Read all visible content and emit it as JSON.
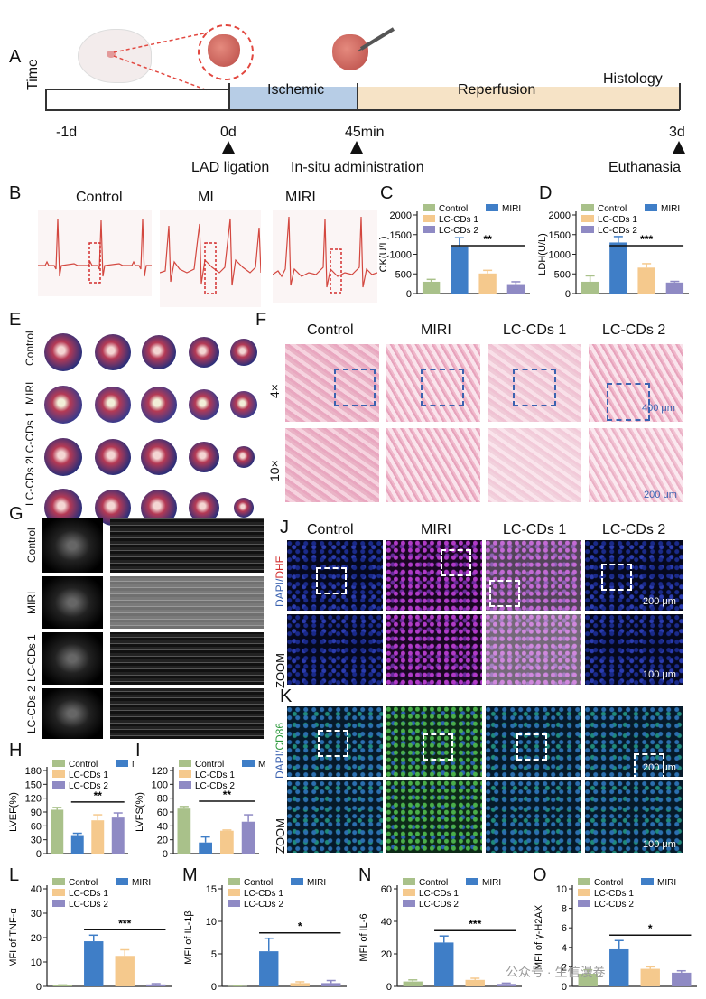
{
  "colors": {
    "control": "#a9c18a",
    "miri": "#3f7ec7",
    "lccds1": "#f5c98d",
    "lccds2": "#8f8ac4",
    "ischemic": "#b7cde6",
    "reperfusion": "#f6e3c6"
  },
  "panelA": {
    "label": "A",
    "time_label": "Time",
    "phase_ischemic": "Ischemic",
    "phase_reperfusion": "Reperfusion",
    "phase_histology": "Histology",
    "ticks": [
      "-1d",
      "0d",
      "45min",
      "3d"
    ],
    "events": [
      "LAD ligation",
      "In-situ administration",
      "Euthanasia"
    ]
  },
  "panelB": {
    "label": "B",
    "titles": [
      "Control",
      "MI",
      "MIRI"
    ]
  },
  "panelE": {
    "label": "E",
    "rows": [
      "Control",
      "MIRI",
      "LC-CDs 1",
      "LC-CDs 2"
    ]
  },
  "panelF": {
    "label": "F",
    "cols": [
      "Control",
      "MIRI",
      "LC-CDs 1",
      "LC-CDs 2"
    ],
    "rows": [
      "4×",
      "10×"
    ],
    "scales": [
      "400 μm",
      "200 μm"
    ]
  },
  "panelG": {
    "label": "G",
    "rows": [
      "Control",
      "MIRI",
      "LC-CDs 1",
      "LC-CDs 2"
    ]
  },
  "panelJ": {
    "label": "J",
    "cols": [
      "Control",
      "MIRI",
      "LC-CDs 1",
      "LC-CDs 2"
    ],
    "stain_a": "DAPI/",
    "stain_b": "DHE",
    "zoom": "ZOOM",
    "scales": [
      "200 μm",
      "100 μm"
    ]
  },
  "panelK": {
    "label": "K",
    "stain_a": "DAPI/",
    "stain_b": "CD86",
    "zoom": "ZOOM",
    "scales": [
      "200 μm",
      "100 μm"
    ]
  },
  "legend": {
    "control": "Control",
    "miri": "MIRI",
    "lccds1": "LC-CDs 1",
    "lccds2": "LC-CDs 2"
  },
  "watermark": "公众号 · 生信漫卷",
  "chart_data": [
    {
      "id": "C",
      "type": "bar",
      "label": "C",
      "ylabel": "CK(U/L)",
      "ylim": [
        0,
        2000
      ],
      "ticks": [
        0,
        500,
        1000,
        1500,
        2000
      ],
      "categories": [
        "Control",
        "MIRI",
        "LC-CDs 1",
        "LC-CDs 2"
      ],
      "values": [
        300,
        1200,
        510,
        240
      ],
      "errors": [
        60,
        220,
        80,
        60
      ],
      "sig": "**",
      "sig_from": 1,
      "sig_to": 3
    },
    {
      "id": "D",
      "type": "bar",
      "label": "D",
      "ylabel": "LDH(U/L)",
      "ylim": [
        0,
        2000
      ],
      "ticks": [
        0,
        500,
        1000,
        1500,
        2000
      ],
      "categories": [
        "Control",
        "MIRI",
        "LC-CDs 1",
        "LC-CDs 2"
      ],
      "values": [
        300,
        1300,
        660,
        280
      ],
      "errors": [
        150,
        150,
        100,
        30
      ],
      "sig": "***",
      "sig_from": 1,
      "sig_to": 3
    },
    {
      "id": "H",
      "type": "bar",
      "label": "H",
      "ylabel": "LVEF(%)",
      "ylim": [
        0,
        180
      ],
      "ticks": [
        0,
        30,
        60,
        90,
        120,
        150,
        180
      ],
      "categories": [
        "Control",
        "MIRI",
        "LC-CDs 1",
        "LC-CDs 2"
      ],
      "values": [
        95,
        40,
        72,
        78
      ],
      "errors": [
        5,
        4,
        12,
        10
      ],
      "sig": "**",
      "sig_from": 1,
      "sig_to": 3
    },
    {
      "id": "I",
      "type": "bar",
      "label": "I",
      "ylabel": "LVFS(%)",
      "ylim": [
        0,
        120
      ],
      "ticks": [
        0,
        20,
        40,
        60,
        80,
        100,
        120
      ],
      "categories": [
        "Control",
        "MIRI",
        "LC-CDs 1",
        "LC-CDs 2"
      ],
      "values": [
        65,
        16,
        33,
        46
      ],
      "errors": [
        3,
        8,
        1,
        10
      ],
      "sig": "**",
      "sig_from": 1,
      "sig_to": 3
    },
    {
      "id": "L",
      "type": "bar",
      "label": "L",
      "ylabel": "MFI of TNF-α",
      "ylim": [
        0,
        40
      ],
      "ticks": [
        0,
        10,
        20,
        30,
        40
      ],
      "categories": [
        "Control",
        "MIRI",
        "LC-CDs 1",
        "LC-CDs 2"
      ],
      "values": [
        0.4,
        18.5,
        12.5,
        0.8
      ],
      "errors": [
        0.2,
        2.5,
        2.5,
        0.3
      ],
      "sig": "***",
      "sig_from": 1,
      "sig_to": 3
    },
    {
      "id": "M",
      "type": "bar",
      "label": "M",
      "ylabel": "MFI of IL-1β",
      "ylim": [
        0,
        15
      ],
      "ticks": [
        0,
        5,
        10,
        15
      ],
      "categories": [
        "Control",
        "MIRI",
        "LC-CDs 1",
        "LC-CDs 2"
      ],
      "values": [
        0.05,
        5.4,
        0.5,
        0.5
      ],
      "errors": [
        0.05,
        2.0,
        0.2,
        0.4
      ],
      "sig": "*",
      "sig_from": 1,
      "sig_to": 3
    },
    {
      "id": "N",
      "type": "bar",
      "label": "N",
      "ylabel": "MFI of IL-6",
      "ylim": [
        0,
        60
      ],
      "ticks": [
        0,
        20,
        40,
        60
      ],
      "categories": [
        "Control",
        "MIRI",
        "LC-CDs 1",
        "LC-CDs 2"
      ],
      "values": [
        3,
        27,
        4,
        1.5
      ],
      "errors": [
        1,
        4,
        1,
        0.5
      ],
      "sig": "***",
      "sig_from": 1,
      "sig_to": 3
    },
    {
      "id": "O",
      "type": "bar",
      "label": "O",
      "ylabel": "MFI of γ-H2AX",
      "ylim": [
        0,
        10
      ],
      "ticks": [
        0,
        2,
        4,
        6,
        8,
        10
      ],
      "categories": [
        "Control",
        "MIRI",
        "LC-CDs 1",
        "LC-CDs 2"
      ],
      "values": [
        1.3,
        3.8,
        1.8,
        1.4
      ],
      "errors": [
        0.4,
        0.9,
        0.2,
        0.2
      ],
      "sig": "*",
      "sig_from": 1,
      "sig_to": 3
    }
  ]
}
